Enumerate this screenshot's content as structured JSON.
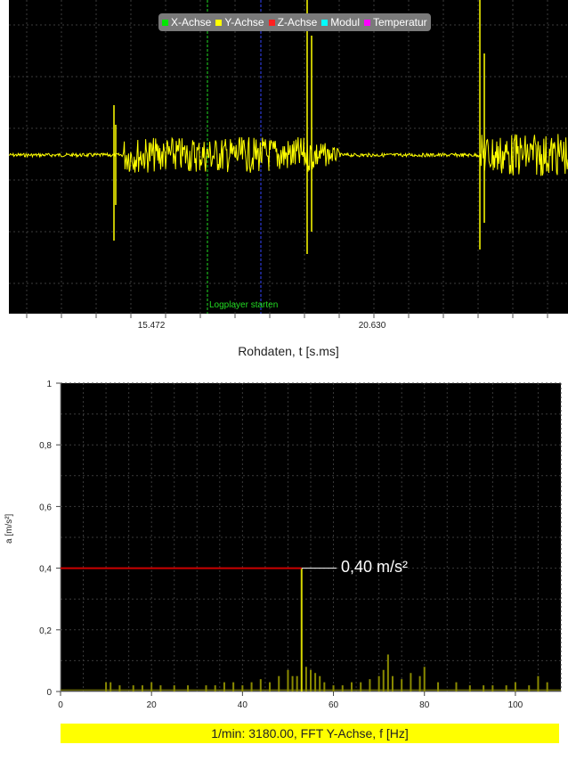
{
  "legend": [
    {
      "label": "X-Achse",
      "color": "#00e600"
    },
    {
      "label": "Y-Achse",
      "color": "#ffff00"
    },
    {
      "label": "Z-Achse",
      "color": "#ff2020"
    },
    {
      "label": "Modul",
      "color": "#00ffff"
    },
    {
      "label": "Temperatur",
      "color": "#ff00ff"
    }
  ],
  "top_plot": {
    "cursor_label": "Logplayer starten",
    "ticks": [
      "15.472",
      "20.630"
    ],
    "xlabel": "Rohdaten, t [s.ms]"
  },
  "bottom_plot": {
    "marker_label": "0,40 m/s²",
    "ylabel": "a [m/s²]",
    "xlabel": "1/min: 3180.00, FFT Y-Achse, f [Hz]"
  },
  "chart_data": [
    {
      "type": "line",
      "title": "",
      "xlabel": "Rohdaten, t [s.ms]",
      "ylabel": "",
      "x_ticks": [
        "15.472",
        "20.630"
      ],
      "series": [
        {
          "name": "Y-Achse",
          "color": "#ffff00"
        }
      ],
      "legend": [
        "X-Achse",
        "Y-Achse",
        "Z-Achse",
        "Modul",
        "Temperatur"
      ],
      "legend_position": "top-center",
      "grid": true
    },
    {
      "type": "bar",
      "title": "",
      "xlabel": "1/min: 3180.00, FFT Y-Achse, f [Hz]",
      "ylabel": "a [m/s²]",
      "xlim": [
        0,
        110
      ],
      "ylim": [
        0,
        1
      ],
      "x_ticks": [
        0,
        20,
        40,
        60,
        80,
        100
      ],
      "y_ticks": [
        "0",
        "0,2",
        "0,4",
        "0,6",
        "0,8",
        "1"
      ],
      "x": [
        10,
        11,
        13,
        16,
        18,
        20,
        22,
        25,
        28,
        32,
        34,
        36,
        38,
        40,
        42,
        44,
        46,
        48,
        50,
        51,
        52,
        53,
        54,
        55,
        56,
        57,
        58,
        60,
        62,
        64,
        66,
        68,
        70,
        71,
        72,
        73,
        75,
        77,
        79,
        80,
        83,
        87,
        90,
        93,
        95,
        98,
        100,
        103,
        105,
        107
      ],
      "values": [
        0.03,
        0.03,
        0.02,
        0.02,
        0.02,
        0.03,
        0.02,
        0.02,
        0.02,
        0.02,
        0.02,
        0.03,
        0.03,
        0.02,
        0.03,
        0.04,
        0.03,
        0.05,
        0.07,
        0.05,
        0.05,
        0.4,
        0.08,
        0.07,
        0.06,
        0.05,
        0.03,
        0.02,
        0.02,
        0.03,
        0.03,
        0.04,
        0.05,
        0.07,
        0.12,
        0.05,
        0.04,
        0.06,
        0.05,
        0.08,
        0.03,
        0.03,
        0.02,
        0.02,
        0.02,
        0.02,
        0.03,
        0.02,
        0.05,
        0.03
      ],
      "color": "#ffff00",
      "marker": {
        "value": 0.4,
        "label": "0,40 m/s²",
        "color": "#cc0000"
      },
      "grid": true
    }
  ]
}
